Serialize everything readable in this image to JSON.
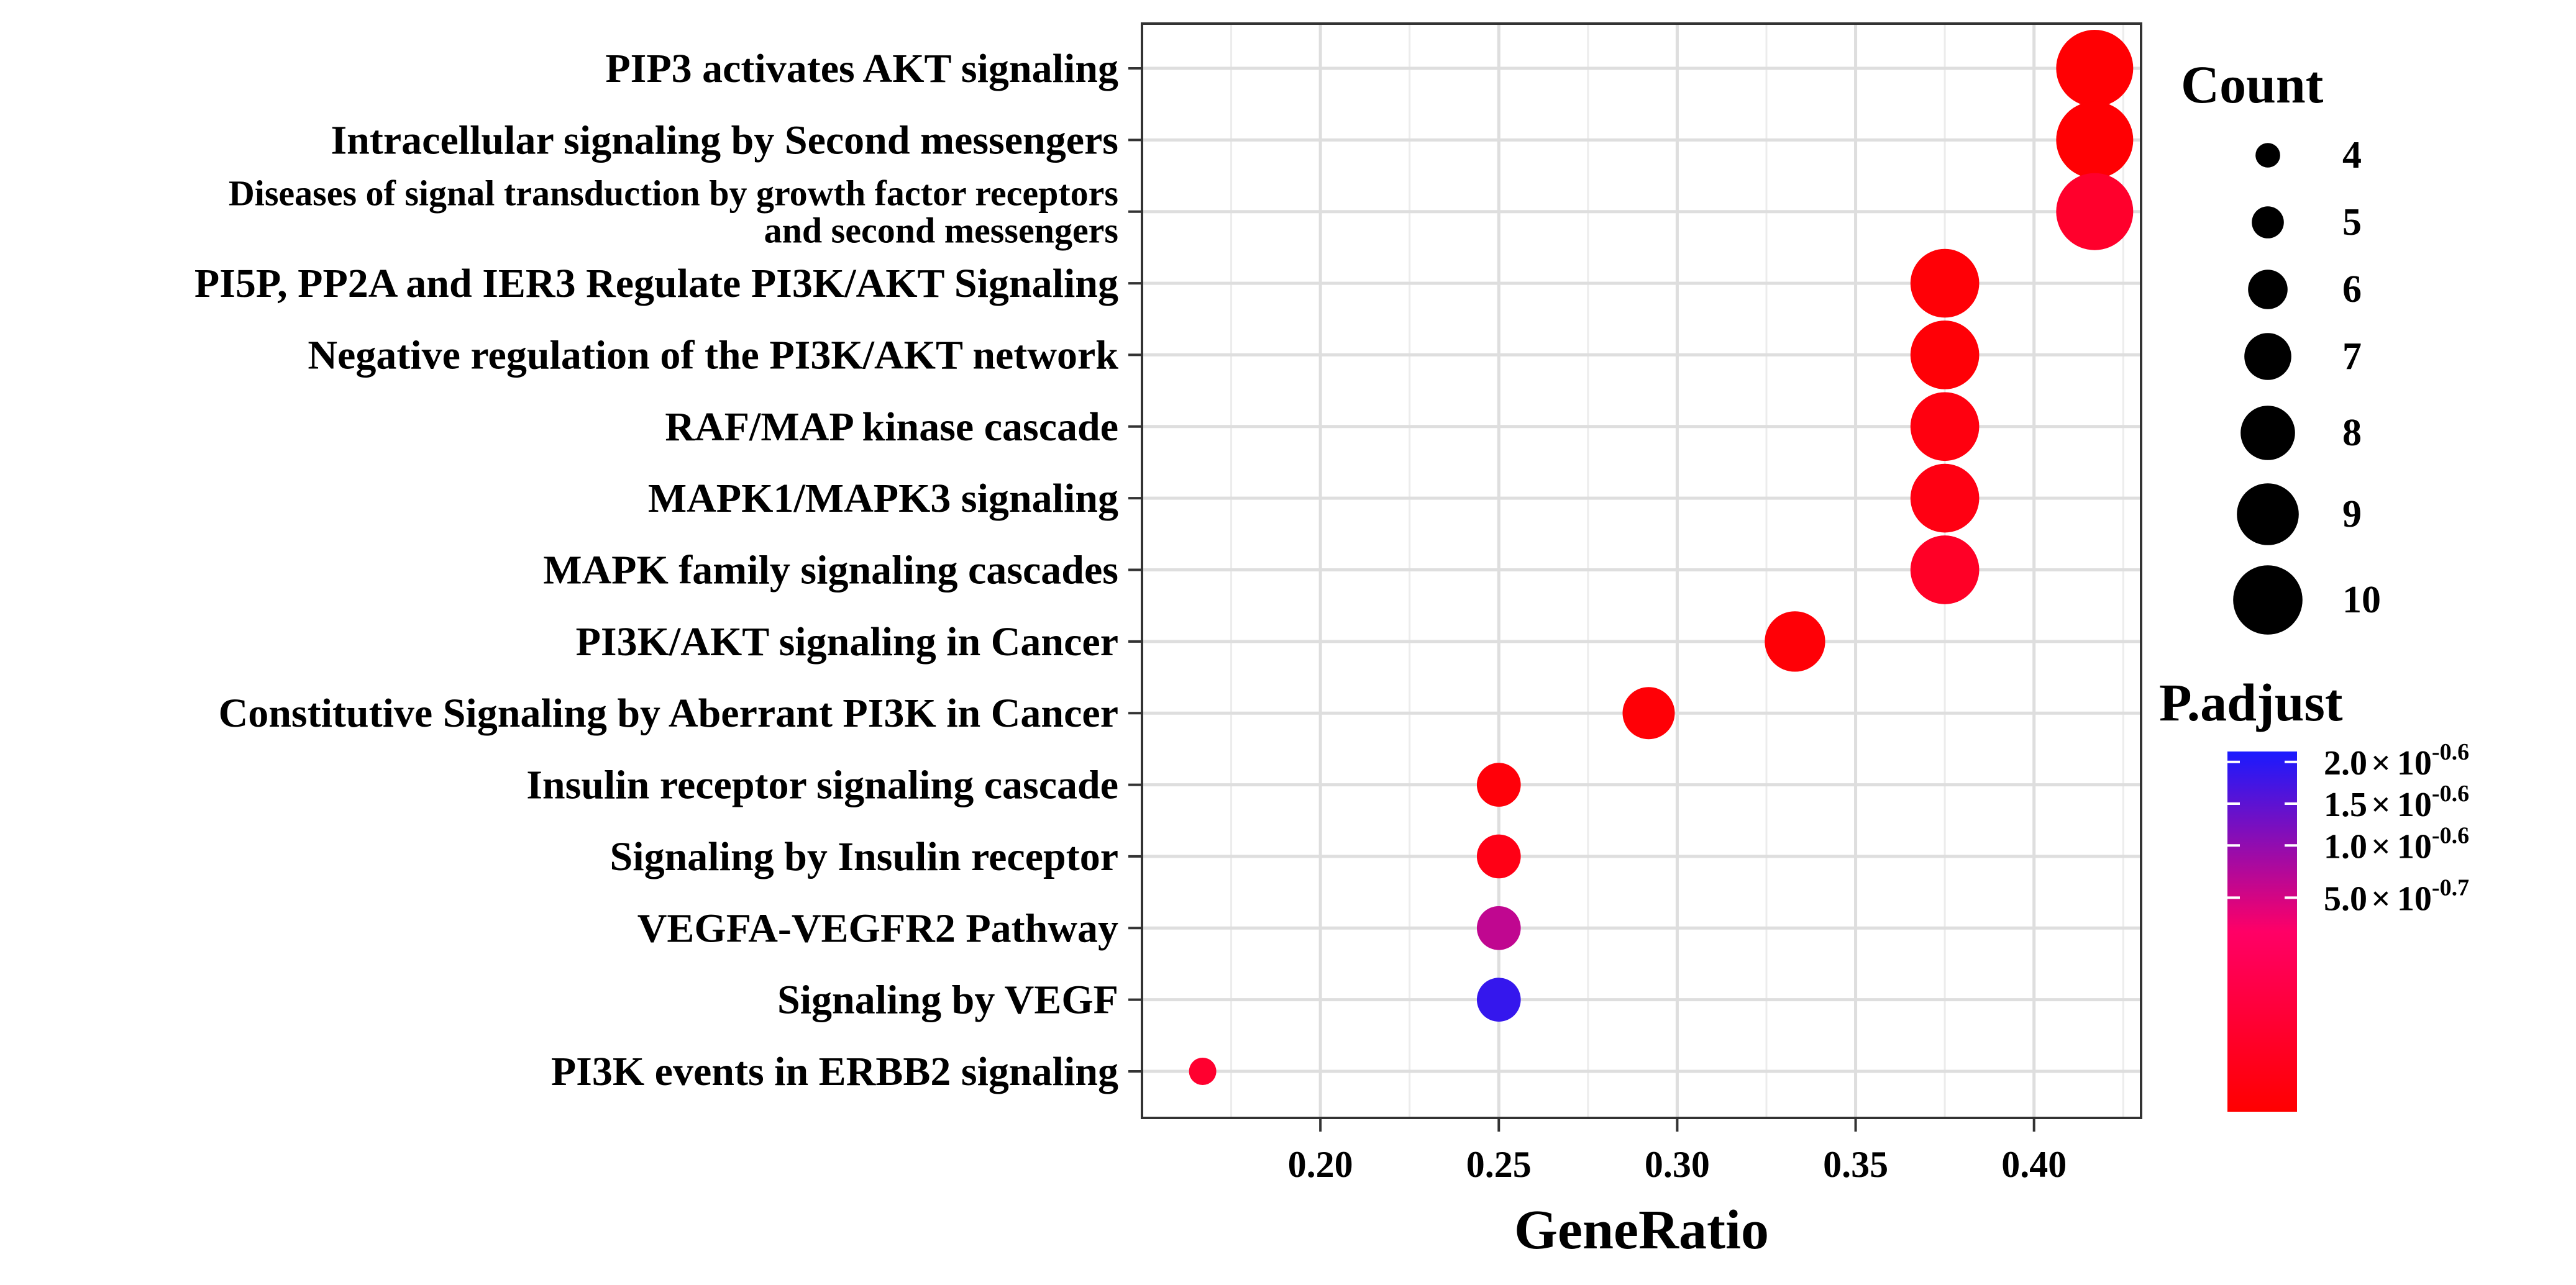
{
  "chart_data": {
    "type": "scatter",
    "xlabel": "GeneRatio",
    "ylabel": "",
    "xlim": [
      0.15,
      0.43
    ],
    "xticks": [
      0.2,
      0.25,
      0.3,
      0.35,
      0.4
    ],
    "xtick_labels": [
      "0.20",
      "0.25",
      "0.30",
      "0.35",
      "0.40"
    ],
    "grid": true,
    "points": [
      {
        "label": [
          "PIP3 activates AKT signaling"
        ],
        "gene_ratio": 0.417,
        "count": 10,
        "p_adjust": 0.1
      },
      {
        "label": [
          "Intracellular signaling by Second messengers"
        ],
        "gene_ratio": 0.417,
        "count": 10,
        "p_adjust": 0.1
      },
      {
        "label": [
          "Diseases of signal transduction by growth factor receptors",
          "and second messengers"
        ],
        "gene_ratio": 0.417,
        "count": 10,
        "p_adjust": 0.24
      },
      {
        "label": [
          "PI5P, PP2A and IER3 Regulate PI3K/AKT Signaling"
        ],
        "gene_ratio": 0.375,
        "count": 9,
        "p_adjust": 0.11
      },
      {
        "label": [
          "Negative regulation of the PI3K/AKT network"
        ],
        "gene_ratio": 0.375,
        "count": 9,
        "p_adjust": 0.11
      },
      {
        "label": [
          "RAF/MAP kinase cascade"
        ],
        "gene_ratio": 0.375,
        "count": 9,
        "p_adjust": 0.14
      },
      {
        "label": [
          "MAPK1/MAPK3 signaling"
        ],
        "gene_ratio": 0.375,
        "count": 9,
        "p_adjust": 0.15
      },
      {
        "label": [
          "MAPK family signaling cascades"
        ],
        "gene_ratio": 0.375,
        "count": 9,
        "p_adjust": 0.22
      },
      {
        "label": [
          "PI3K/AKT signaling in Cancer"
        ],
        "gene_ratio": 0.333,
        "count": 8,
        "p_adjust": 0.11
      },
      {
        "label": [
          "Constitutive Signaling by Aberrant PI3K in Cancer"
        ],
        "gene_ratio": 0.292,
        "count": 7,
        "p_adjust": 0.11
      },
      {
        "label": [
          "Insulin receptor signaling cascade"
        ],
        "gene_ratio": 0.25,
        "count": 6,
        "p_adjust": 0.12
      },
      {
        "label": [
          "Signaling by Insulin receptor"
        ],
        "gene_ratio": 0.25,
        "count": 6,
        "p_adjust": 0.16
      },
      {
        "label": [
          "VEGFA-VEGFR2  Pathway"
        ],
        "gene_ratio": 0.25,
        "count": 6,
        "p_adjust": 0.53
      },
      {
        "label": [
          "Signaling by VEGF"
        ],
        "gene_ratio": 0.25,
        "count": 6,
        "p_adjust": 0.74
      },
      {
        "label": [
          "PI3K events in ERBB2 signaling"
        ],
        "gene_ratio": 0.167,
        "count": 4,
        "p_adjust": 0.25
      }
    ],
    "legend_size": {
      "title": "Count",
      "values": [
        4,
        5,
        6,
        7,
        8,
        9,
        10
      ],
      "labels": [
        "4",
        "5",
        "6",
        "7",
        "8",
        "9",
        "10"
      ]
    },
    "legend_color": {
      "title": "P.adjust",
      "range": [
        0.09,
        0.78
      ],
      "colors": {
        "low": "#ff0000",
        "mid": "#ff0066",
        "high": "#1a1aff"
      },
      "ticks": [
        {
          "value": 0.5,
          "mantissa": "5.0",
          "exponent": "-0.7"
        },
        {
          "value": 0.6,
          "mantissa": "1.0",
          "exponent": "-0.6"
        },
        {
          "value": 0.68,
          "mantissa": "1.5",
          "exponent": "-0.6"
        },
        {
          "value": 0.76,
          "mantissa": "2.0",
          "exponent": "-0.6"
        }
      ],
      "times_symbol": "×",
      "base": "10"
    }
  }
}
